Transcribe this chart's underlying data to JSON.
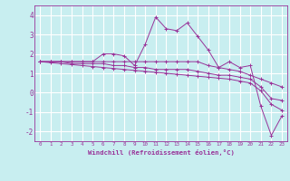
{
  "title": "",
  "xlabel": "Windchill (Refroidissement éolien,°C)",
  "ylabel": "",
  "bg_color": "#c8eef0",
  "line_color": "#993399",
  "grid_color": "#ffffff",
  "xlim": [
    -0.5,
    23.5
  ],
  "ylim": [
    -2.5,
    4.5
  ],
  "xticks": [
    0,
    1,
    2,
    3,
    4,
    5,
    6,
    7,
    8,
    9,
    10,
    11,
    12,
    13,
    14,
    15,
    16,
    17,
    18,
    19,
    20,
    21,
    22,
    23
  ],
  "yticks": [
    -2,
    -1,
    0,
    1,
    2,
    3,
    4
  ],
  "series": [
    [
      1.6,
      1.6,
      1.6,
      1.6,
      1.6,
      1.6,
      2.0,
      2.0,
      1.9,
      1.4,
      2.5,
      3.9,
      3.3,
      3.2,
      3.6,
      2.9,
      2.2,
      1.3,
      1.6,
      1.3,
      1.4,
      -0.7,
      -2.2,
      -1.2
    ],
    [
      1.6,
      1.6,
      1.6,
      1.6,
      1.6,
      1.6,
      1.6,
      1.6,
      1.6,
      1.6,
      1.6,
      1.6,
      1.6,
      1.6,
      1.6,
      1.6,
      1.4,
      1.3,
      1.2,
      1.1,
      0.9,
      0.7,
      0.5,
      0.3
    ],
    [
      1.6,
      1.6,
      1.6,
      1.5,
      1.5,
      1.5,
      1.5,
      1.4,
      1.4,
      1.3,
      1.3,
      1.2,
      1.2,
      1.2,
      1.2,
      1.1,
      1.0,
      0.9,
      0.9,
      0.8,
      0.7,
      0.3,
      -0.3,
      -0.4
    ],
    [
      1.6,
      1.55,
      1.5,
      1.45,
      1.4,
      1.35,
      1.3,
      1.25,
      1.2,
      1.15,
      1.1,
      1.05,
      1.0,
      0.95,
      0.9,
      0.85,
      0.8,
      0.75,
      0.7,
      0.6,
      0.5,
      0.1,
      -0.6,
      -0.9
    ]
  ]
}
